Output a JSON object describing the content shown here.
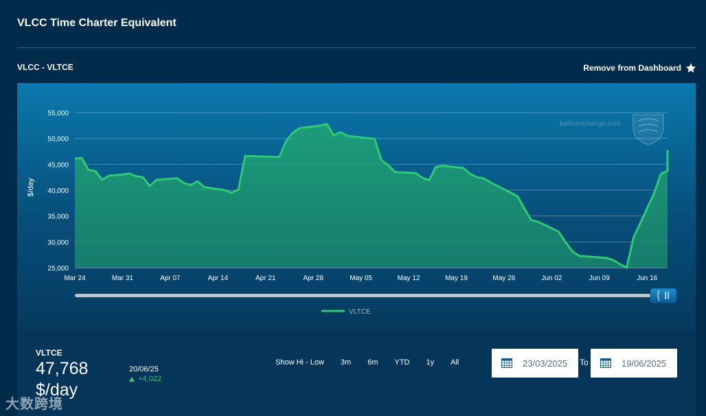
{
  "header": {
    "title": "VLCC Time Charter Equivalent"
  },
  "chart_header": {
    "subtitle": "VLCC - VLTCE",
    "remove_label": "Remove from Dashboard"
  },
  "colors": {
    "line": "#2ecc71",
    "page_bg": "#002b4a"
  },
  "watermark": {
    "site_text": "balticexchange.com",
    "corner_text": "大数跨境"
  },
  "chart_data": {
    "type": "area",
    "title": "",
    "ylabel": "$/day",
    "xlabel": "",
    "ylim": [
      25000,
      55000
    ],
    "yticks": [
      25000,
      30000,
      35000,
      40000,
      45000,
      50000,
      55000
    ],
    "ytick_labels": [
      "25,000",
      "30,000",
      "35,000",
      "40,000",
      "45,000",
      "50,000",
      "55,000"
    ],
    "xticks": [
      "2025-03-24",
      "2025-03-31",
      "2025-04-07",
      "2025-04-14",
      "2025-04-21",
      "2025-04-28",
      "2025-05-05",
      "2025-05-12",
      "2025-05-19",
      "2025-05-26",
      "2025-06-02",
      "2025-06-09",
      "2025-06-16"
    ],
    "xtick_labels": [
      "Mar 24",
      "Mar 31",
      "Apr 07",
      "Apr 14",
      "Apr 21",
      "Apr 28",
      "May 05",
      "May 12",
      "May 19",
      "May 26",
      "Jun 02",
      "Jun 09",
      "Jun 16"
    ],
    "xlim": [
      "2025-03-24",
      "2025-06-19"
    ],
    "grid": true,
    "legend_position": "bottom-center",
    "series": [
      {
        "name": "VLTCE",
        "points": [
          [
            "2025-03-24",
            46100
          ],
          [
            "2025-03-25",
            46200
          ],
          [
            "2025-03-26",
            43900
          ],
          [
            "2025-03-27",
            43700
          ],
          [
            "2025-03-28",
            42000
          ],
          [
            "2025-03-29",
            42800
          ],
          [
            "2025-03-30",
            42900
          ],
          [
            "2025-04-01",
            43200
          ],
          [
            "2025-04-02",
            42700
          ],
          [
            "2025-04-03",
            42500
          ],
          [
            "2025-04-04",
            40800
          ],
          [
            "2025-04-05",
            42000
          ],
          [
            "2025-04-06",
            42100
          ],
          [
            "2025-04-08",
            42300
          ],
          [
            "2025-04-09",
            41400
          ],
          [
            "2025-04-10",
            41000
          ],
          [
            "2025-04-11",
            41700
          ],
          [
            "2025-04-12",
            40600
          ],
          [
            "2025-04-15",
            40000
          ],
          [
            "2025-04-16",
            39500
          ],
          [
            "2025-04-17",
            40100
          ],
          [
            "2025-04-18",
            46600
          ],
          [
            "2025-04-23",
            46400
          ],
          [
            "2025-04-24",
            49500
          ],
          [
            "2025-04-25",
            51100
          ],
          [
            "2025-04-26",
            52000
          ],
          [
            "2025-04-28",
            52300
          ],
          [
            "2025-04-29",
            52500
          ],
          [
            "2025-04-30",
            52800
          ],
          [
            "2025-05-01",
            50600
          ],
          [
            "2025-05-02",
            51200
          ],
          [
            "2025-05-03",
            50500
          ],
          [
            "2025-05-07",
            49900
          ],
          [
            "2025-05-08",
            45800
          ],
          [
            "2025-05-09",
            44800
          ],
          [
            "2025-05-10",
            43500
          ],
          [
            "2025-05-13",
            43300
          ],
          [
            "2025-05-14",
            42400
          ],
          [
            "2025-05-15",
            41900
          ],
          [
            "2025-05-16",
            44500
          ],
          [
            "2025-05-17",
            44700
          ],
          [
            "2025-05-20",
            44300
          ],
          [
            "2025-05-21",
            43200
          ],
          [
            "2025-05-22",
            42500
          ],
          [
            "2025-05-23",
            42300
          ],
          [
            "2025-05-24",
            41500
          ],
          [
            "2025-05-28",
            38800
          ],
          [
            "2025-05-29",
            36400
          ],
          [
            "2025-05-30",
            34200
          ],
          [
            "2025-05-31",
            33900
          ],
          [
            "2025-06-03",
            32000
          ],
          [
            "2025-06-04",
            30000
          ],
          [
            "2025-06-05",
            28200
          ],
          [
            "2025-06-06",
            27300
          ],
          [
            "2025-06-10",
            26900
          ],
          [
            "2025-06-11",
            26500
          ],
          [
            "2025-06-12",
            25700
          ],
          [
            "2025-06-13",
            25000
          ],
          [
            "2025-06-14",
            30800
          ],
          [
            "2025-06-17",
            39300
          ],
          [
            "2025-06-18",
            43100
          ],
          [
            "2025-06-19",
            43800
          ],
          [
            "2025-06-20",
            47768
          ]
        ]
      }
    ]
  },
  "summary": {
    "symbol": "VLTCE",
    "value": "47,768",
    "unit": "$/day",
    "change_date": "20/06/25",
    "change_value": "+4,022"
  },
  "ranges": [
    "Show Hi - Low",
    "3m",
    "6m",
    "YTD",
    "1y",
    "All"
  ],
  "date_range": {
    "from": "23/03/2025",
    "to_label": "To",
    "to": "19/06/2025"
  }
}
